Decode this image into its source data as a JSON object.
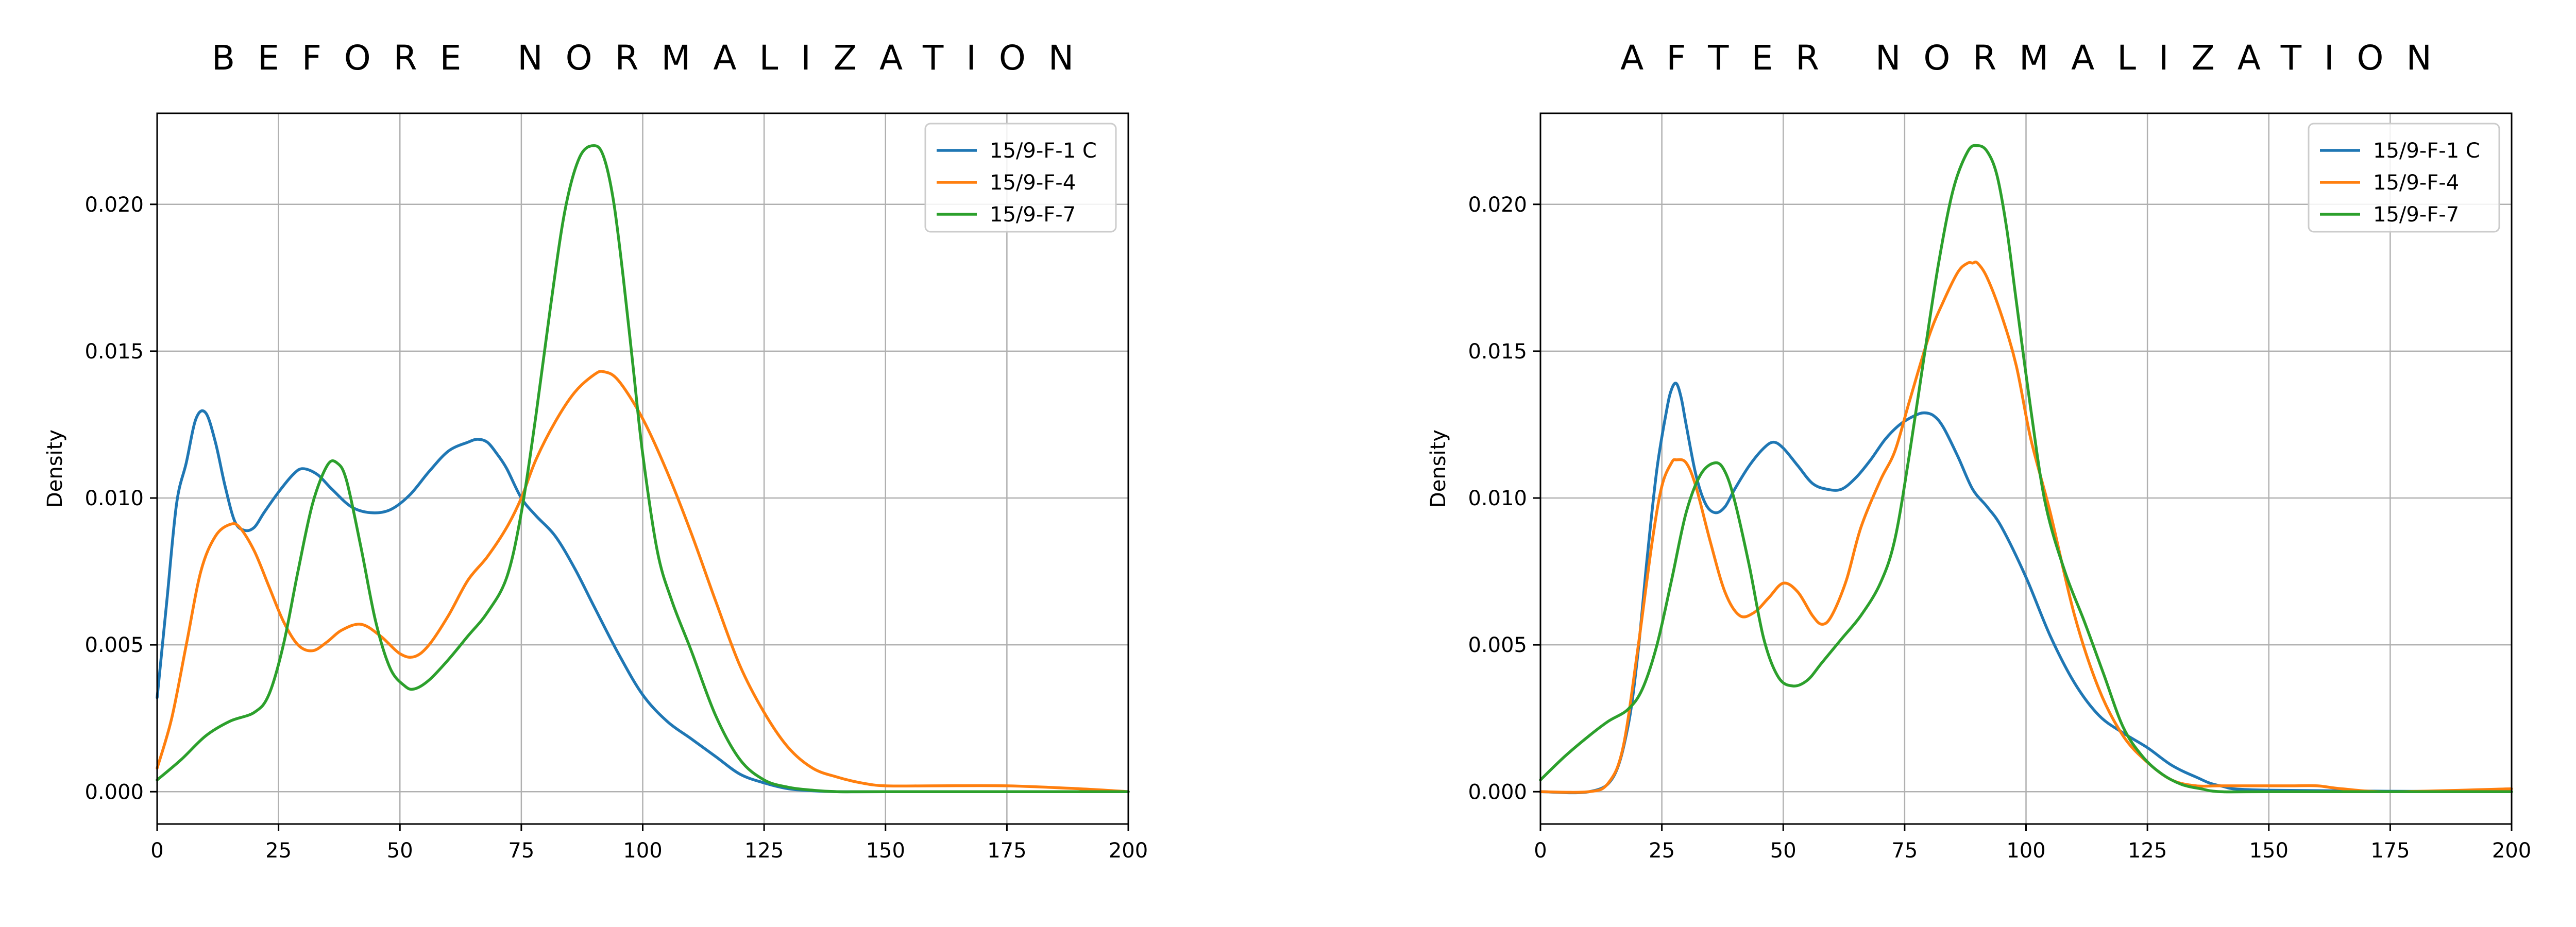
{
  "chart_data": [
    {
      "type": "line",
      "title": "BEFORE NORMALIZATION",
      "xlabel": "",
      "ylabel": "Density",
      "xlim": [
        0,
        200
      ],
      "ylim": [
        -0.0011,
        0.0231
      ],
      "xticks": [
        0,
        25,
        50,
        75,
        100,
        125,
        150,
        175,
        200
      ],
      "xtick_labels": [
        "0",
        "25",
        "50",
        "75",
        "100",
        "125",
        "150",
        "175",
        "200"
      ],
      "yticks": [
        0,
        0.005,
        0.01,
        0.015,
        0.02
      ],
      "ytick_labels": [
        "0.000",
        "0.005",
        "0.010",
        "0.015",
        "0.020"
      ],
      "grid": true,
      "legend_position": "upper right",
      "series": [
        {
          "name": "15/9-F-1 C",
          "color": "#1f77b4",
          "x": [
            0,
            2,
            4,
            6,
            8,
            10,
            12,
            14,
            16,
            18,
            20,
            22,
            25,
            28,
            30,
            33,
            36,
            40,
            44,
            48,
            52,
            56,
            60,
            64,
            66,
            68,
            70,
            72,
            75,
            78,
            82,
            86,
            90,
            95,
            100,
            105,
            110,
            115,
            120,
            125,
            130,
            135,
            140,
            150,
            175,
            200
          ],
          "y": [
            0.0032,
            0.0065,
            0.0098,
            0.0112,
            0.0127,
            0.0129,
            0.0119,
            0.0104,
            0.0092,
            0.0089,
            0.009,
            0.0095,
            0.0102,
            0.0108,
            0.011,
            0.0108,
            0.0103,
            0.0097,
            0.0095,
            0.0096,
            0.0101,
            0.0109,
            0.0116,
            0.0119,
            0.012,
            0.0119,
            0.0115,
            0.011,
            0.01,
            0.0094,
            0.0087,
            0.0076,
            0.0063,
            0.0047,
            0.0033,
            0.0024,
            0.0018,
            0.0012,
            0.0006,
            0.0003,
            0.0001,
            3e-05,
            0.0,
            0.0,
            0.0,
            0.0
          ]
        },
        {
          "name": "15/9-F-4",
          "color": "#ff7f0e",
          "x": [
            0,
            3,
            6,
            9,
            12,
            15,
            17,
            20,
            23,
            26,
            29,
            32,
            35,
            38,
            42,
            46,
            50,
            53,
            56,
            60,
            64,
            68,
            72,
            75,
            78,
            82,
            86,
            90,
            92,
            95,
            100,
            105,
            110,
            115,
            120,
            125,
            130,
            135,
            140,
            145,
            150,
            160,
            175,
            190,
            200
          ],
          "y": [
            0.0008,
            0.0025,
            0.005,
            0.0075,
            0.0087,
            0.0091,
            0.009,
            0.0082,
            0.007,
            0.0058,
            0.005,
            0.0048,
            0.0051,
            0.0055,
            0.0057,
            0.0053,
            0.0047,
            0.0046,
            0.005,
            0.006,
            0.0072,
            0.008,
            0.009,
            0.01,
            0.0113,
            0.0126,
            0.0136,
            0.0142,
            0.0143,
            0.014,
            0.0127,
            0.0109,
            0.0088,
            0.0065,
            0.0043,
            0.0027,
            0.0015,
            0.0008,
            0.0005,
            0.0003,
            0.0002,
            0.0002,
            0.0002,
            0.0001,
            0.0
          ]
        },
        {
          "name": "15/9-F-7",
          "color": "#2ca02c",
          "x": [
            0,
            5,
            10,
            15,
            20,
            23,
            26,
            29,
            32,
            35,
            37,
            39,
            42,
            45,
            48,
            51,
            53,
            56,
            60,
            64,
            68,
            72,
            75,
            78,
            81,
            84,
            87,
            90,
            92,
            94,
            96,
            98,
            100,
            103,
            106,
            110,
            115,
            120,
            125,
            130,
            135,
            140,
            150,
            200
          ],
          "y": [
            0.0004,
            0.0011,
            0.0019,
            0.0024,
            0.0027,
            0.0033,
            0.005,
            0.0075,
            0.0098,
            0.0111,
            0.0112,
            0.0106,
            0.0083,
            0.0058,
            0.0042,
            0.0036,
            0.0035,
            0.0038,
            0.0045,
            0.0053,
            0.0061,
            0.0073,
            0.0095,
            0.0128,
            0.0165,
            0.0198,
            0.0216,
            0.022,
            0.0216,
            0.0201,
            0.0175,
            0.0145,
            0.0115,
            0.0082,
            0.0065,
            0.0048,
            0.0026,
            0.0011,
            0.0004,
            0.00015,
            5e-05,
            0.0,
            0.0,
            0.0
          ]
        }
      ]
    },
    {
      "type": "line",
      "title": "AFTER NORMALIZATION",
      "xlabel": "",
      "ylabel": "Density",
      "xlim": [
        0,
        200
      ],
      "ylim": [
        -0.0011,
        0.0231
      ],
      "xticks": [
        0,
        25,
        50,
        75,
        100,
        125,
        150,
        175,
        200
      ],
      "xtick_labels": [
        "0",
        "25",
        "50",
        "75",
        "100",
        "125",
        "150",
        "175",
        "200"
      ],
      "yticks": [
        0,
        0.005,
        0.01,
        0.015,
        0.02
      ],
      "ytick_labels": [
        "0.000",
        "0.005",
        "0.010",
        "0.015",
        "0.020"
      ],
      "grid": true,
      "legend_position": "upper right",
      "series": [
        {
          "name": "15/9-F-1 C",
          "color": "#1f77b4",
          "x": [
            0,
            10,
            15,
            18,
            20,
            22,
            24,
            26,
            27,
            28,
            29,
            30,
            32,
            34,
            36,
            38,
            40,
            43,
            46,
            48,
            50,
            53,
            56,
            59,
            62,
            65,
            68,
            71,
            74,
            77,
            79,
            81,
            83,
            86,
            89,
            92,
            95,
            100,
            105,
            110,
            115,
            120,
            125,
            130,
            135,
            140,
            150,
            200
          ],
          "y": [
            0.0,
            0.0,
            0.0005,
            0.0022,
            0.0046,
            0.008,
            0.011,
            0.013,
            0.0137,
            0.0139,
            0.0134,
            0.0125,
            0.0108,
            0.0098,
            0.0095,
            0.0097,
            0.0103,
            0.0111,
            0.0117,
            0.0119,
            0.0117,
            0.0111,
            0.0105,
            0.0103,
            0.0103,
            0.0107,
            0.0113,
            0.012,
            0.0125,
            0.0128,
            0.0129,
            0.0128,
            0.0124,
            0.0114,
            0.0103,
            0.0097,
            0.009,
            0.0073,
            0.0053,
            0.0037,
            0.0026,
            0.002,
            0.0015,
            0.0009,
            0.0005,
            0.0002,
            5e-05,
            0.0
          ]
        },
        {
          "name": "15/9-F-4",
          "color": "#ff7f0e",
          "x": [
            0,
            10,
            14,
            17,
            20,
            23,
            25,
            27,
            28,
            30,
            32,
            35,
            38,
            41,
            44,
            47,
            50,
            53,
            56,
            58,
            60,
            63,
            66,
            70,
            73,
            76,
            80,
            83,
            86,
            88,
            89,
            90,
            92,
            95,
            98,
            101,
            105,
            110,
            115,
            120,
            125,
            130,
            135,
            140,
            150,
            155,
            160,
            165,
            175,
            200
          ],
          "y": [
            0.0,
            0.0,
            0.0003,
            0.0015,
            0.0048,
            0.0085,
            0.0104,
            0.0112,
            0.0113,
            0.0112,
            0.0104,
            0.0085,
            0.0068,
            0.006,
            0.0061,
            0.0066,
            0.0071,
            0.0068,
            0.006,
            0.0057,
            0.006,
            0.0072,
            0.009,
            0.0106,
            0.0116,
            0.0133,
            0.0155,
            0.0167,
            0.0177,
            0.018,
            0.018,
            0.018,
            0.0175,
            0.0162,
            0.0145,
            0.012,
            0.0095,
            0.006,
            0.0035,
            0.0019,
            0.001,
            0.0004,
            0.0002,
            0.0002,
            0.0002,
            0.0002,
            0.0002,
            0.0001,
            0.0,
            0.0001
          ]
        },
        {
          "name": "15/9-F-7",
          "color": "#2ca02c",
          "x": [
            0,
            5,
            10,
            14,
            18,
            21,
            24,
            27,
            30,
            33,
            36,
            38,
            40,
            43,
            46,
            49,
            52,
            55,
            58,
            62,
            66,
            70,
            73,
            76,
            79,
            82,
            85,
            88,
            90,
            92,
            94,
            96,
            98,
            101,
            104,
            108,
            112,
            116,
            120,
            124,
            128,
            132,
            136,
            140,
            150,
            200
          ],
          "y": [
            0.0004,
            0.0012,
            0.0019,
            0.0024,
            0.0028,
            0.0035,
            0.005,
            0.0072,
            0.0095,
            0.0108,
            0.0112,
            0.0109,
            0.0099,
            0.0077,
            0.0052,
            0.0039,
            0.0036,
            0.0038,
            0.0044,
            0.0052,
            0.006,
            0.0071,
            0.0086,
            0.0115,
            0.0148,
            0.018,
            0.0205,
            0.0218,
            0.022,
            0.0218,
            0.021,
            0.0192,
            0.0167,
            0.013,
            0.0098,
            0.0075,
            0.0058,
            0.004,
            0.0022,
            0.0012,
            0.0006,
            0.00025,
            0.0001,
            0.0,
            0.0,
            0.0
          ]
        }
      ]
    }
  ]
}
